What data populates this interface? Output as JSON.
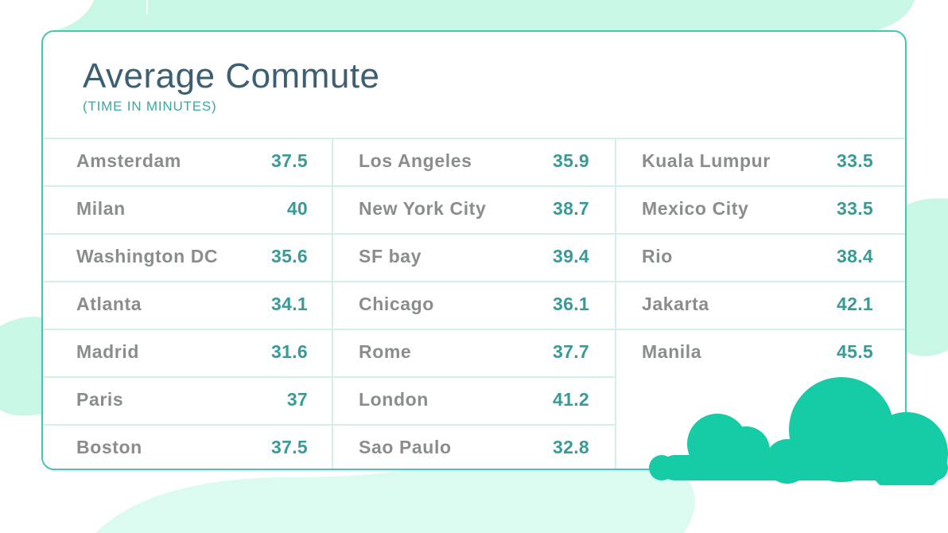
{
  "title": "Average Commute",
  "subtitle": "(TIME IN MINUTES)",
  "colors": {
    "title": "#3d5f72",
    "subtitle": "#3aa8a0",
    "city": "#8a8d8e",
    "value": "#3a9a96",
    "border": "#40c8b2",
    "grid_line": "#d3efeb",
    "blob": "#c8f7e6",
    "cloud": "#15cca6"
  },
  "chart_data": {
    "type": "table",
    "title": "Average Commute",
    "subtitle": "(TIME IN MINUTES)",
    "columns": [
      [
        {
          "city": "Amsterdam",
          "value": "37.5"
        },
        {
          "city": "Milan",
          "value": "40"
        },
        {
          "city": "Washington DC",
          "value": "35.6"
        },
        {
          "city": "Atlanta",
          "value": "34.1"
        },
        {
          "city": "Madrid",
          "value": "31.6"
        },
        {
          "city": "Paris",
          "value": "37"
        },
        {
          "city": "Boston",
          "value": "37.5"
        }
      ],
      [
        {
          "city": "Los Angeles",
          "value": "35.9"
        },
        {
          "city": "New York City",
          "value": "38.7"
        },
        {
          "city": "SF bay",
          "value": "39.4"
        },
        {
          "city": "Chicago",
          "value": "36.1"
        },
        {
          "city": "Rome",
          "value": "37.7"
        },
        {
          "city": "London",
          "value": "41.2"
        },
        {
          "city": "Sao Paulo",
          "value": "32.8"
        }
      ],
      [
        {
          "city": "Kuala Lumpur",
          "value": "33.5"
        },
        {
          "city": "Mexico City",
          "value": "33.5"
        },
        {
          "city": "Rio",
          "value": "38.4"
        },
        {
          "city": "Jakarta",
          "value": "42.1"
        },
        {
          "city": "Manila",
          "value": "45.5"
        }
      ]
    ]
  }
}
